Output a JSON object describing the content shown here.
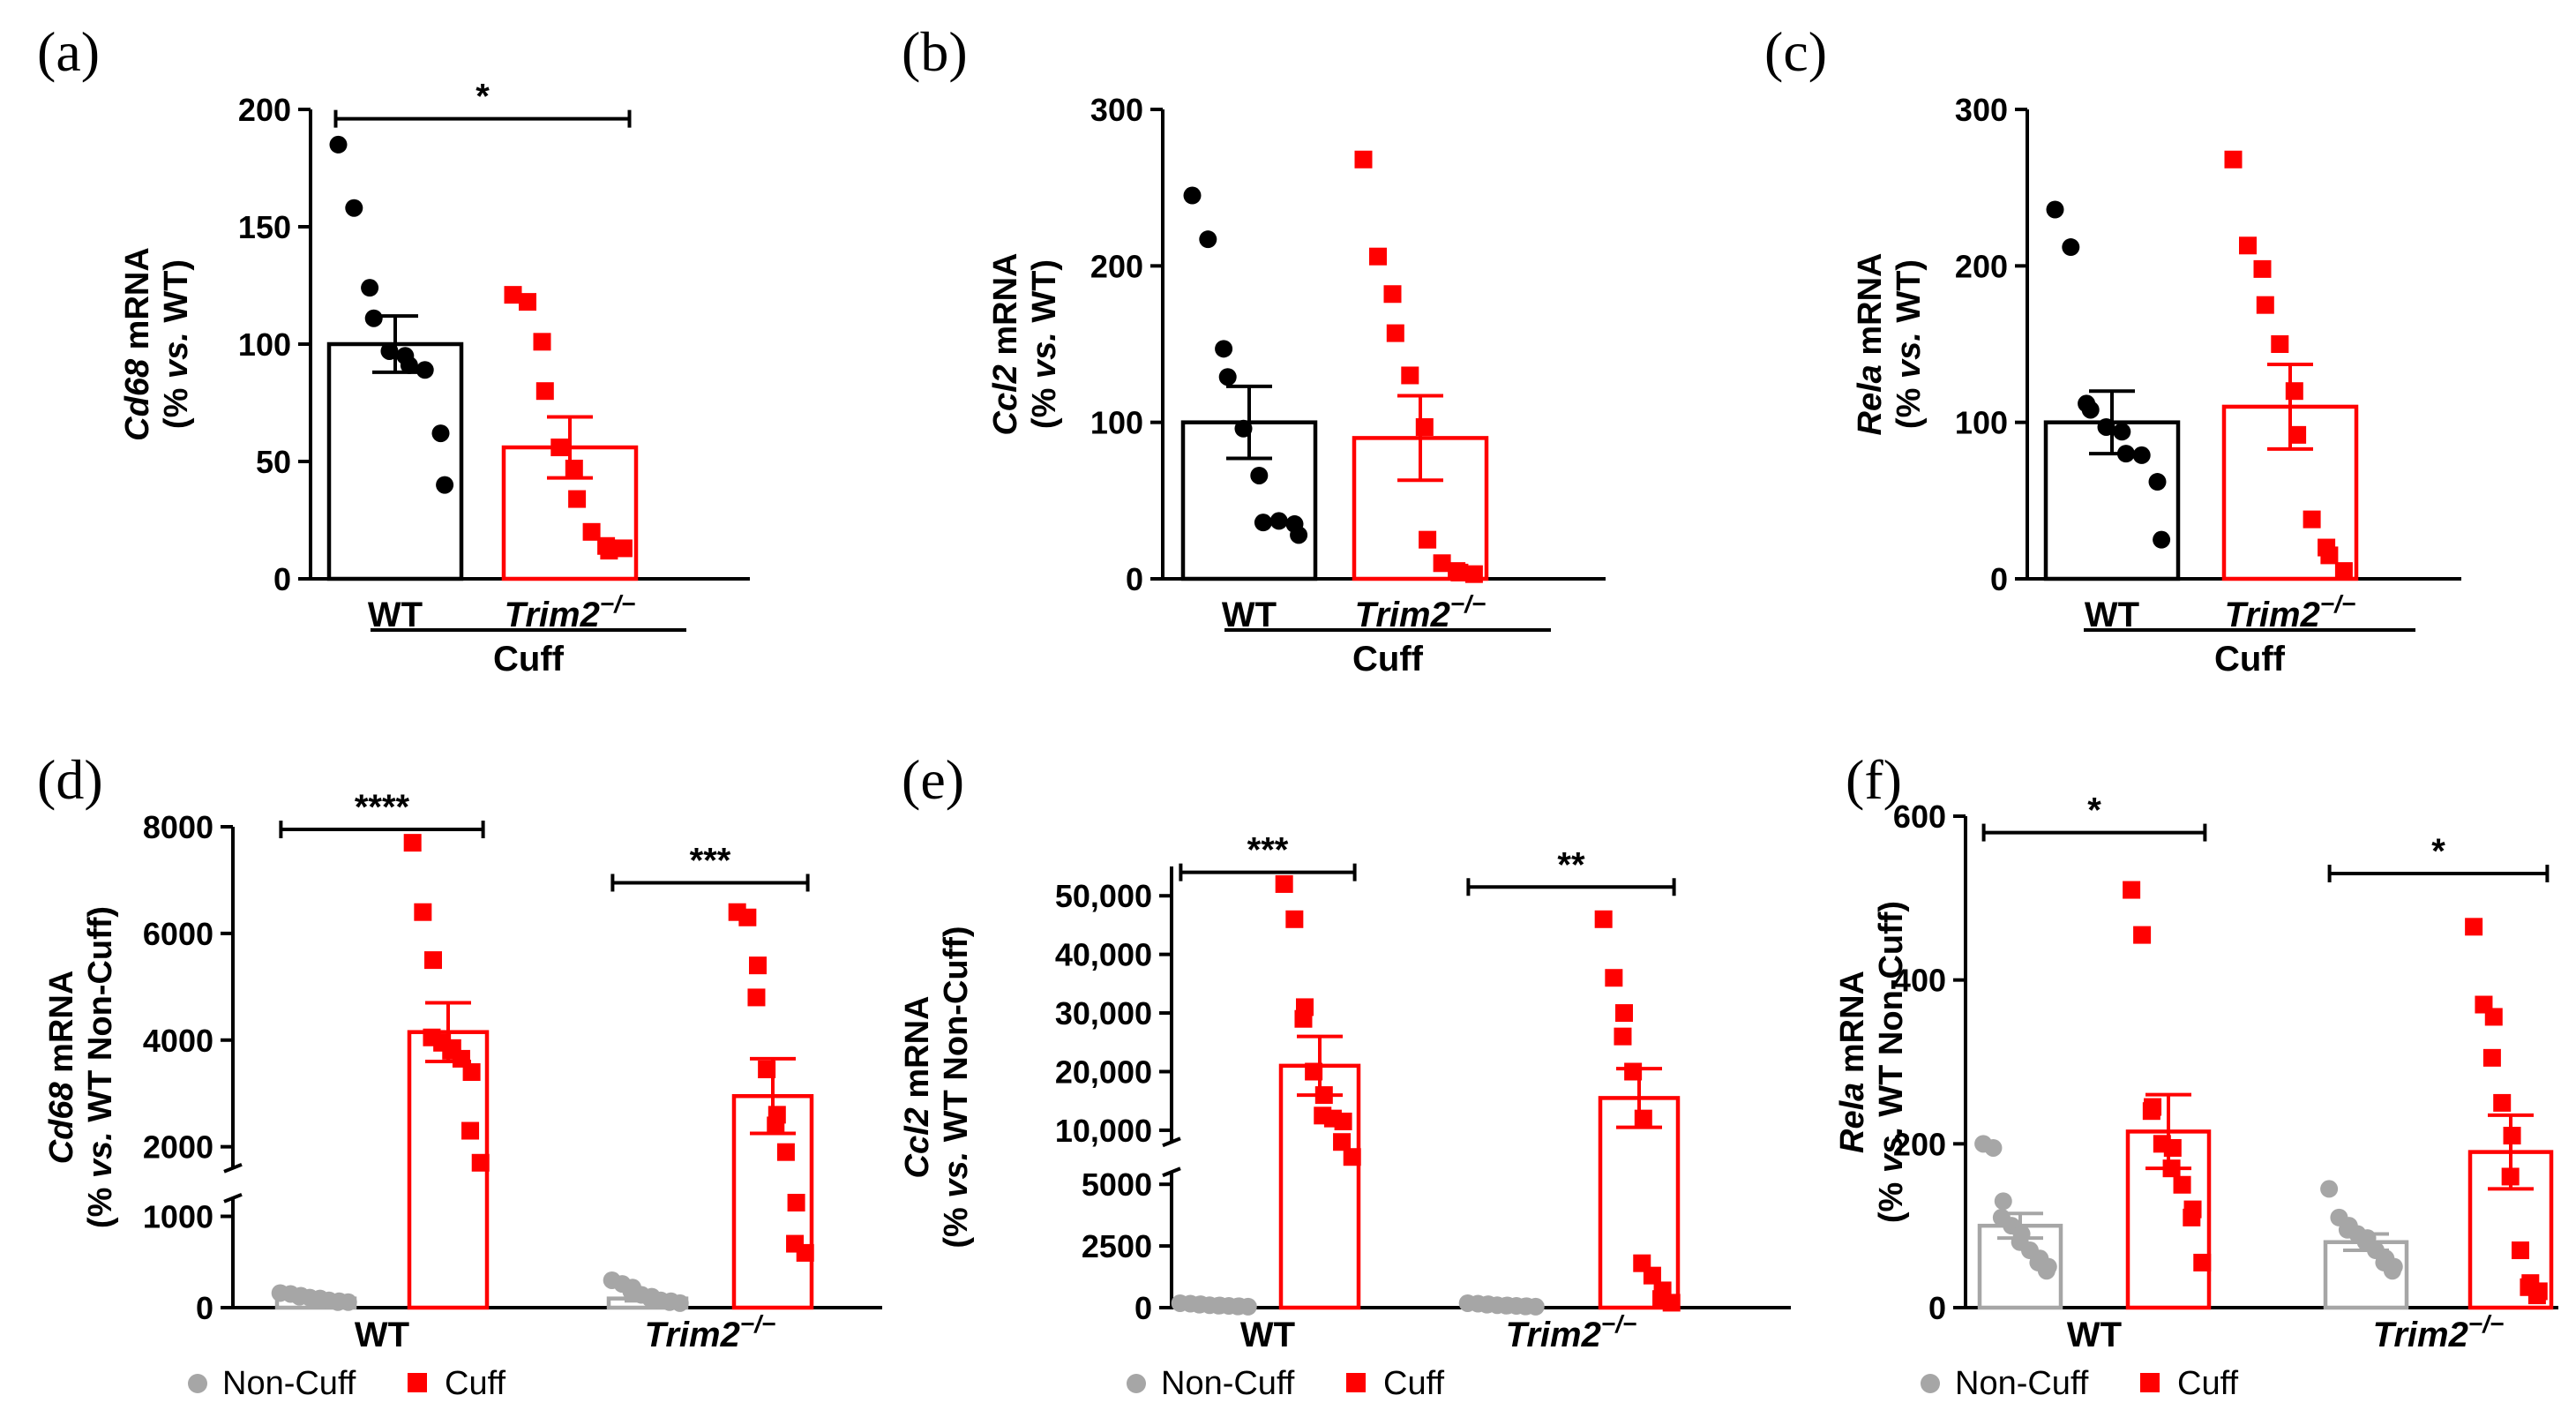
{
  "colors": {
    "wt": "#000000",
    "ko": "#ff0000",
    "noncuff": "#a6a6a6",
    "cuff": "#ff0000"
  },
  "chart_data": [
    {
      "id": "a",
      "panel_label": "(a)",
      "type": "bar",
      "ylabel_parts": [
        {
          "t": "Cd68",
          "italic": true
        },
        {
          "t": " mRNA",
          "italic": false
        }
      ],
      "ylabel_sub_parts": [
        {
          "t": "(% ",
          "italic": false
        },
        {
          "t": "vs.",
          "italic": true
        },
        {
          "t": " WT)",
          "italic": false
        }
      ],
      "ylim": [
        0,
        200
      ],
      "yticks": [
        0,
        50,
        100,
        150,
        200
      ],
      "ytick_labels": [
        "0",
        "50",
        "100",
        "150",
        "200"
      ],
      "categories": [
        "WT",
        "Trim2"
      ],
      "category_sup": [
        "",
        "−/−"
      ],
      "group_label": "Cuff",
      "bars": [
        {
          "name": "WT",
          "mean": 100,
          "sem": 12,
          "color_key": "wt",
          "marker": "circle",
          "points": [
            185,
            158,
            124,
            111,
            97,
            95,
            91,
            89,
            62,
            40
          ]
        },
        {
          "name": "Trim2−/−",
          "mean": 56,
          "sem": 13,
          "color_key": "ko",
          "marker": "square",
          "points": [
            121,
            118,
            101,
            80,
            56,
            47,
            34,
            20,
            14,
            12,
            13
          ]
        }
      ],
      "significance": [
        {
          "from": 0,
          "to": 1,
          "label": "*",
          "y": 196
        }
      ]
    },
    {
      "id": "b",
      "panel_label": "(b)",
      "type": "bar",
      "ylabel_parts": [
        {
          "t": "Ccl2",
          "italic": true
        },
        {
          "t": " mRNA",
          "italic": false
        }
      ],
      "ylabel_sub_parts": [
        {
          "t": "(% ",
          "italic": false
        },
        {
          "t": "vs.",
          "italic": true
        },
        {
          "t": " WT)",
          "italic": false
        }
      ],
      "ylim": [
        0,
        300
      ],
      "yticks": [
        0,
        100,
        200,
        300
      ],
      "ytick_labels": [
        "0",
        "100",
        "200",
        "300"
      ],
      "categories": [
        "WT",
        "Trim2"
      ],
      "category_sup": [
        "",
        "−/−"
      ],
      "group_label": "Cuff",
      "bars": [
        {
          "name": "WT",
          "mean": 100,
          "sem": 23,
          "color_key": "wt",
          "marker": "circle",
          "points": [
            245,
            217,
            147,
            129,
            96,
            66,
            36,
            37,
            35,
            28
          ]
        },
        {
          "name": "Trim2−/−",
          "mean": 90,
          "sem": 27,
          "color_key": "ko",
          "marker": "square",
          "points": [
            268,
            206,
            182,
            157,
            130,
            97,
            25,
            10,
            5,
            4,
            3
          ]
        }
      ]
    },
    {
      "id": "c",
      "panel_label": "(c)",
      "type": "bar",
      "ylabel_parts": [
        {
          "t": "Rela",
          "italic": true
        },
        {
          "t": " mRNA",
          "italic": false
        }
      ],
      "ylabel_sub_parts": [
        {
          "t": "(% ",
          "italic": false
        },
        {
          "t": "vs.",
          "italic": true
        },
        {
          "t": " WT)",
          "italic": false
        }
      ],
      "ylim": [
        0,
        300
      ],
      "yticks": [
        0,
        100,
        200,
        300
      ],
      "ytick_labels": [
        "0",
        "100",
        "200",
        "300"
      ],
      "categories": [
        "WT",
        "Trim2"
      ],
      "category_sup": [
        "",
        "−/−"
      ],
      "group_label": "Cuff",
      "bars": [
        {
          "name": "WT",
          "mean": 100,
          "sem": 20,
          "color_key": "wt",
          "marker": "circle",
          "points": [
            236,
            212,
            112,
            108,
            97,
            94,
            80,
            79,
            62,
            25
          ]
        },
        {
          "name": "Trim2−/−",
          "mean": 110,
          "sem": 27,
          "color_key": "ko",
          "marker": "square",
          "points": [
            268,
            213,
            198,
            175,
            150,
            120,
            92,
            38,
            20,
            15,
            5
          ]
        }
      ]
    },
    {
      "id": "d",
      "panel_label": "(d)",
      "type": "bar",
      "ylabel_parts": [
        {
          "t": "Cd68",
          "italic": true
        },
        {
          "t": " mRNA",
          "italic": false
        }
      ],
      "ylabel_sub_parts": [
        {
          "t": "(% ",
          "italic": false
        },
        {
          "t": "vs.",
          "italic": true
        },
        {
          "t": " WT Non-Cuff)",
          "italic": false
        }
      ],
      "broken_axis": true,
      "segments": [
        {
          "from": 0,
          "to": 1200,
          "weight": 0.243
        },
        {
          "from": 1600,
          "to": 8000,
          "weight": 0.757
        }
      ],
      "yticks": [
        0,
        1000,
        2000,
        4000,
        6000,
        8000
      ],
      "ytick_labels": [
        "0",
        "1000",
        "2000",
        "4000",
        "6000",
        "8000"
      ],
      "categories": [
        "WT",
        "Trim2"
      ],
      "category_sup": [
        "",
        "−/−"
      ],
      "bars": [
        {
          "name": "WT Non-Cuff",
          "mean": 100,
          "sem": 15,
          "color_key": "noncuff",
          "marker": "circle",
          "points": [
            160,
            150,
            130,
            120,
            110,
            100,
            90,
            80,
            70,
            60,
            60
          ]
        },
        {
          "name": "WT Cuff",
          "mean": 4150,
          "sem": 550,
          "color_key": "cuff",
          "marker": "square",
          "points": [
            7700,
            6400,
            5500,
            4050,
            3950,
            3850,
            3800,
            3650,
            3400,
            2300,
            1700
          ]
        },
        {
          "name": "Trim2−/− Non-Cuff",
          "mean": 100,
          "sem": 25,
          "color_key": "noncuff",
          "marker": "circle",
          "points": [
            300,
            260,
            220,
            180,
            140,
            120,
            100,
            80,
            70,
            60,
            50
          ]
        },
        {
          "name": "Trim2−/− Cuff",
          "mean": 2950,
          "sem": 700,
          "color_key": "cuff",
          "marker": "square",
          "points": [
            6400,
            6300,
            5400,
            4800,
            3450,
            2600,
            2400,
            1900,
            1150,
            700,
            600
          ]
        }
      ],
      "significance": [
        {
          "from": 0,
          "to": 1,
          "label": "****",
          "y": 7950
        },
        {
          "from": 2,
          "to": 3,
          "label": "***",
          "y": 6950
        }
      ],
      "legend": [
        "Non-Cuff",
        "Cuff"
      ]
    },
    {
      "id": "e",
      "panel_label": "(e)",
      "type": "bar",
      "ylabel_parts": [
        {
          "t": "Ccl2",
          "italic": true
        },
        {
          "t": " mRNA",
          "italic": false
        }
      ],
      "ylabel_sub_parts": [
        {
          "t": "(% ",
          "italic": false
        },
        {
          "t": "vs.",
          "italic": true
        },
        {
          "t": " WT Non-Cuff)",
          "italic": false
        }
      ],
      "broken_axis": true,
      "segments": [
        {
          "from": 0,
          "to": 5500,
          "weight": 0.33
        },
        {
          "from": 8000,
          "to": 55000,
          "weight": 0.67
        }
      ],
      "yticks": [
        0,
        2500,
        5000,
        10000,
        20000,
        30000,
        40000,
        50000
      ],
      "ytick_labels": [
        "0",
        "2500",
        "5000",
        "10,000",
        "20,000",
        "30,000",
        "40,000",
        "50,000"
      ],
      "categories": [
        "WT",
        "Trim2"
      ],
      "category_sup": [
        "",
        "−/−"
      ],
      "bars": [
        {
          "name": "WT Non-Cuff",
          "mean": 100,
          "sem": 20,
          "color_key": "noncuff",
          "marker": "circle",
          "points": [
            180,
            160,
            140,
            120,
            100,
            90,
            80,
            70,
            60,
            50,
            40
          ]
        },
        {
          "name": "WT Cuff",
          "mean": 21000,
          "sem": 5000,
          "color_key": "cuff",
          "marker": "square",
          "points": [
            52000,
            46000,
            31000,
            29000,
            20000,
            16000,
            12500,
            12000,
            11500,
            8000,
            7800
          ]
        },
        {
          "name": "Trim2−/− Non-Cuff",
          "mean": 100,
          "sem": 20,
          "color_key": "noncuff",
          "marker": "circle",
          "points": [
            180,
            160,
            140,
            120,
            100,
            90,
            80,
            70,
            60,
            50,
            40
          ]
        },
        {
          "name": "Trim2−/− Cuff",
          "mean": 15500,
          "sem": 5000,
          "color_key": "cuff",
          "marker": "square",
          "points": [
            46000,
            36000,
            30000,
            26000,
            20000,
            12000,
            1800,
            1300,
            700,
            350,
            200
          ]
        }
      ],
      "significance": [
        {
          "from": 0,
          "to": 1,
          "label": "***",
          "y": 54000
        },
        {
          "from": 2,
          "to": 3,
          "label": "**",
          "y": 51500
        }
      ],
      "legend": [
        "Non-Cuff",
        "Cuff"
      ]
    },
    {
      "id": "f",
      "panel_label": "(f)",
      "type": "bar",
      "ylabel_parts": [
        {
          "t": "Rela",
          "italic": true
        },
        {
          "t": " mRNA",
          "italic": false
        }
      ],
      "ylabel_sub_parts": [
        {
          "t": "(% ",
          "italic": false
        },
        {
          "t": "vs.",
          "italic": true
        },
        {
          "t": " WT Non-Cuff)",
          "italic": false
        }
      ],
      "ylim": [
        0,
        600
      ],
      "yticks": [
        0,
        200,
        400,
        600
      ],
      "ytick_labels": [
        "0",
        "200",
        "400",
        "600"
      ],
      "categories": [
        "WT",
        "Trim2"
      ],
      "category_sup": [
        "",
        "−/−"
      ],
      "bars": [
        {
          "name": "WT Non-Cuff",
          "mean": 100,
          "sem": 15,
          "color_key": "noncuff",
          "marker": "circle",
          "points": [
            200,
            195,
            130,
            110,
            100,
            90,
            80,
            70,
            60,
            55,
            50,
            45
          ]
        },
        {
          "name": "WT Cuff",
          "mean": 215,
          "sem": 45,
          "color_key": "cuff",
          "marker": "square",
          "points": [
            510,
            455,
            245,
            240,
            200,
            195,
            170,
            150,
            120,
            110,
            55
          ]
        },
        {
          "name": "Trim2−/− Non-Cuff",
          "mean": 80,
          "sem": 10,
          "color_key": "noncuff",
          "marker": "circle",
          "points": [
            145,
            110,
            100,
            95,
            90,
            85,
            80,
            70,
            60,
            55,
            50,
            45
          ]
        },
        {
          "name": "Trim2−/− Cuff",
          "mean": 190,
          "sem": 45,
          "color_key": "cuff",
          "marker": "square",
          "points": [
            465,
            370,
            355,
            305,
            250,
            210,
            160,
            70,
            30,
            25,
            20,
            15
          ]
        }
      ],
      "significance": [
        {
          "from": 0,
          "to": 1,
          "label": "*",
          "y": 580
        },
        {
          "from": 2,
          "to": 3,
          "label": "*",
          "y": 530
        }
      ],
      "legend": [
        "Non-Cuff",
        "Cuff"
      ]
    }
  ]
}
